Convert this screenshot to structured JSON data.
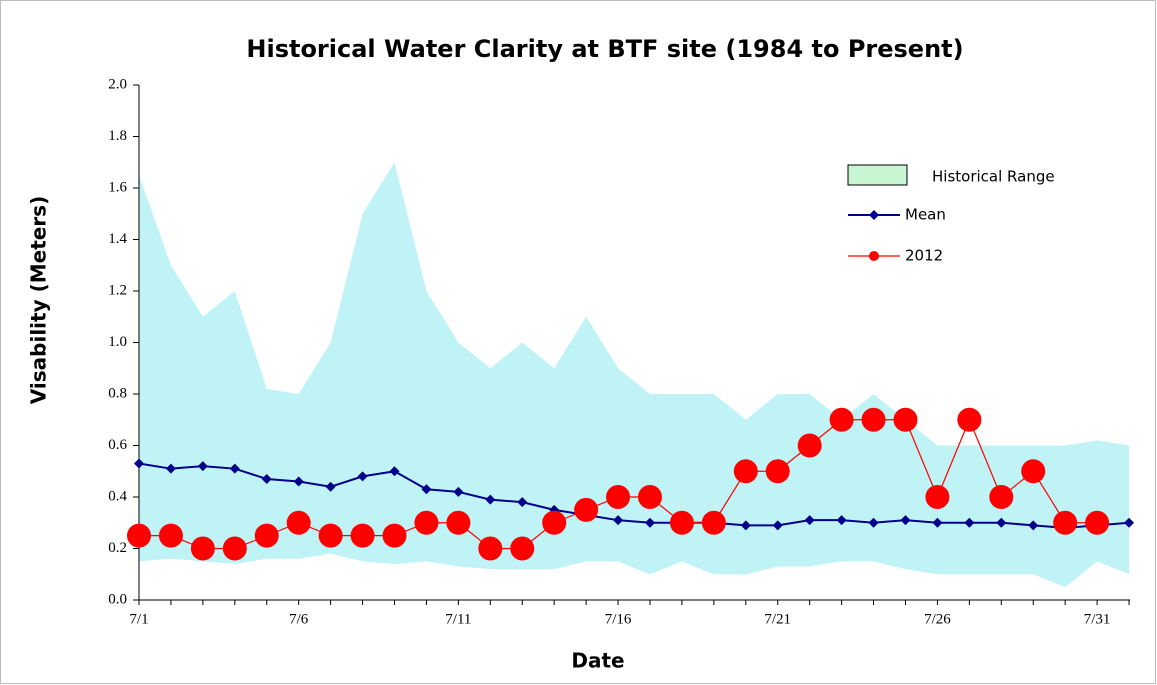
{
  "chart_data": {
    "type": "line",
    "title": "Historical Water Clarity at BTF site (1984 to Present)",
    "xlabel": "Date",
    "ylabel": "Visability (Meters)",
    "categories": [
      "7/1",
      null,
      null,
      null,
      null,
      "7/6",
      null,
      null,
      null,
      null,
      "7/11",
      null,
      null,
      null,
      null,
      "7/16",
      null,
      null,
      null,
      null,
      "7/21",
      null,
      null,
      null,
      null,
      "7/26",
      null,
      null,
      null,
      null,
      "7/31",
      null
    ],
    "ylim": [
      0,
      2
    ],
    "yticks": [
      {
        "value": 0,
        "label": "0.0"
      },
      {
        "value": 0.2,
        "label": "0.2"
      },
      {
        "value": 0.4,
        "label": "0.4"
      },
      {
        "value": 0.6,
        "label": "0.6"
      },
      {
        "value": 0.8,
        "label": "0.8"
      },
      {
        "value": 1,
        "label": "1.0"
      },
      {
        "value": 1.2,
        "label": "1.2"
      },
      {
        "value": 1.4,
        "label": "1.4"
      },
      {
        "value": 1.6,
        "label": "1.6"
      },
      {
        "value": 1.8,
        "label": "1.8"
      },
      {
        "value": 2,
        "label": "2.0"
      }
    ],
    "grid": false,
    "legend": "upper right",
    "series": [
      {
        "name": "Historical Range",
        "kind": "band",
        "color": "#bff3f6",
        "legend_color": "#c8f5d2",
        "values": [
          1.65,
          1.3,
          1.1,
          1.2,
          0.82,
          0.8,
          1.0,
          1.5,
          1.7,
          1.2,
          1.0,
          0.9,
          1.0,
          0.9,
          1.1,
          0.9,
          0.8,
          0.8,
          0.8,
          0.7,
          0.8,
          0.8,
          0.7,
          0.8,
          0.7,
          0.6,
          0.6,
          0.6,
          0.6,
          0.6,
          0.62,
          0.6
        ],
        "lower": [
          0.15,
          0.16,
          0.15,
          0.14,
          0.16,
          0.16,
          0.18,
          0.15,
          0.14,
          0.15,
          0.13,
          0.12,
          0.12,
          0.12,
          0.15,
          0.15,
          0.1,
          0.15,
          0.1,
          0.1,
          0.13,
          0.13,
          0.15,
          0.15,
          0.12,
          0.1,
          0.1,
          0.1,
          0.1,
          0.05,
          0.15,
          0.1
        ]
      },
      {
        "name": "Mean",
        "kind": "diamond",
        "color": "#00008b",
        "values": [
          0.53,
          0.51,
          0.52,
          0.51,
          0.47,
          0.46,
          0.44,
          0.48,
          0.5,
          0.43,
          0.42,
          0.39,
          0.38,
          0.35,
          0.33,
          0.31,
          0.3,
          0.3,
          0.3,
          0.29,
          0.29,
          0.31,
          0.31,
          0.3,
          0.31,
          0.3,
          0.3,
          0.3,
          0.29,
          0.28,
          0.29,
          0.3
        ]
      },
      {
        "name": "2012",
        "kind": "circle",
        "color": "#ff0000",
        "values": [
          0.25,
          0.25,
          0.2,
          0.2,
          0.25,
          0.3,
          0.25,
          0.25,
          0.25,
          0.3,
          0.3,
          0.2,
          0.2,
          0.3,
          0.35,
          0.4,
          0.4,
          0.3,
          0.3,
          0.5,
          0.5,
          0.6,
          0.7,
          0.7,
          0.7,
          0.4,
          0.7,
          0.4,
          0.5,
          0.3,
          0.3,
          null
        ]
      }
    ]
  }
}
